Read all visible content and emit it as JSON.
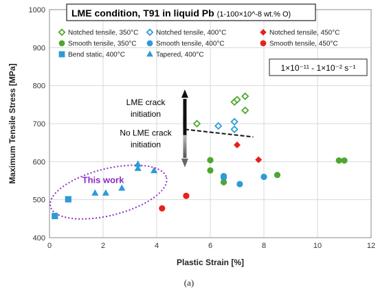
{
  "chart_data": {
    "type": "scatter",
    "title": "LME condition, T91 in liquid Pb",
    "subtitle": "(1-100×10^-8 wt.% O)",
    "xlabel": "Plastic Strain [%]",
    "ylabel": "Maximum Tensile Stress [MPa]",
    "xlim": [
      0,
      12
    ],
    "ylim": [
      400,
      1000
    ],
    "xticks": [
      "0",
      "2",
      "4",
      "6",
      "8",
      "10",
      "12"
    ],
    "yticks": [
      "400",
      "500",
      "600",
      "700",
      "800",
      "900",
      "1000"
    ],
    "grid": true,
    "legend_placement": "top",
    "strain_rate_label": "1×10⁻¹¹ - 1×10⁻² s⁻¹",
    "caption": "(a)",
    "annotations": {
      "crack_up": [
        "LME crack",
        "initiation"
      ],
      "crack_down": [
        "No LME crack",
        "initiation"
      ],
      "this_work": "This work"
    },
    "series": [
      {
        "name": "Notched tensile, 350°C",
        "marker": "diamond",
        "filled": false,
        "color": "#4ea72e",
        "points": [
          [
            5.5,
            700
          ],
          [
            6.9,
            757
          ],
          [
            7.0,
            763
          ],
          [
            7.3,
            772
          ],
          [
            7.3,
            735
          ]
        ]
      },
      {
        "name": "Notched tensile, 400°C",
        "marker": "diamond",
        "filled": false,
        "color": "#2e9ad6",
        "points": [
          [
            6.3,
            694
          ],
          [
            6.9,
            705
          ],
          [
            6.9,
            685
          ]
        ]
      },
      {
        "name": "Notched tensile, 450°C",
        "marker": "diamond",
        "filled": true,
        "color": "#e8201c",
        "points": [
          [
            7.0,
            644
          ],
          [
            7.8,
            605
          ]
        ]
      },
      {
        "name": "Smooth tensile, 350°C",
        "marker": "circle",
        "filled": true,
        "color": "#4ea72e",
        "points": [
          [
            6.0,
            604
          ],
          [
            6.0,
            577
          ],
          [
            6.5,
            546
          ],
          [
            8.5,
            565
          ],
          [
            10.8,
            603
          ],
          [
            11.0,
            603
          ]
        ]
      },
      {
        "name": "Smooth tensile, 400°C",
        "marker": "circle",
        "filled": true,
        "color": "#2e9ad6",
        "points": [
          [
            6.5,
            562
          ],
          [
            6.5,
            558
          ],
          [
            7.1,
            541
          ],
          [
            8.0,
            560
          ]
        ]
      },
      {
        "name": "Smooth tensile, 450°C",
        "marker": "circle",
        "filled": true,
        "color": "#e8201c",
        "points": [
          [
            4.2,
            477
          ],
          [
            5.1,
            510
          ]
        ]
      },
      {
        "name": "Bend static, 400°C",
        "marker": "square",
        "filled": true,
        "color": "#2e9ad6",
        "points": [
          [
            0.2,
            457
          ],
          [
            0.7,
            501
          ]
        ]
      },
      {
        "name": "Tapered, 400°C",
        "marker": "triangle",
        "filled": true,
        "color": "#2e9ad6",
        "points": [
          [
            1.7,
            517
          ],
          [
            2.1,
            517
          ],
          [
            2.7,
            530
          ],
          [
            3.3,
            593
          ],
          [
            3.3,
            582
          ],
          [
            3.9,
            576
          ]
        ]
      }
    ]
  }
}
